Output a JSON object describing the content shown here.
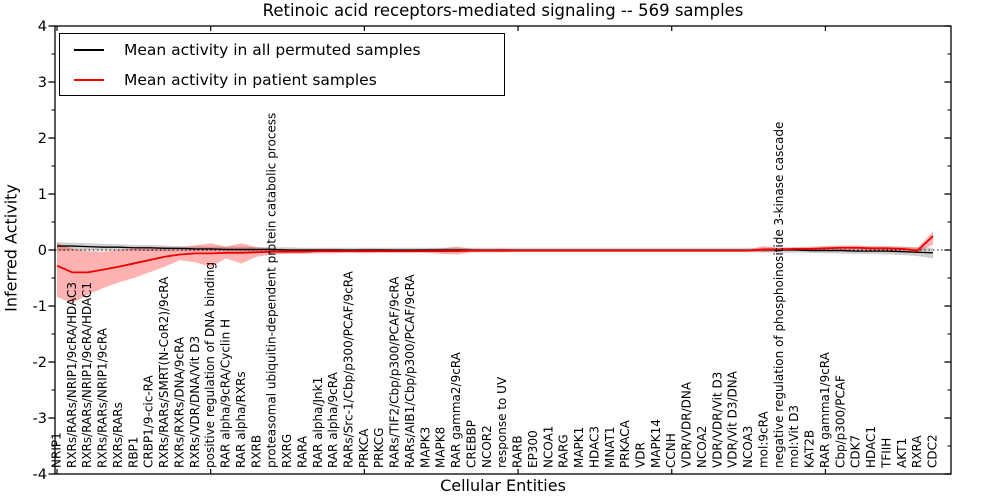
{
  "figure": {
    "title": "Retinoic acid receptors-mediated signaling -- 569 samples",
    "xlabel": "Cellular Entities",
    "ylabel": "Inferred Activity",
    "legend_items": [
      {
        "label": "Mean activity in all permuted samples",
        "color": "#000000"
      },
      {
        "label": "Mean activity in patient samples",
        "color": "#f00000"
      }
    ]
  },
  "chart_data": {
    "type": "line",
    "title": "Retinoic acid receptors-mediated signaling -- 569 samples",
    "xlabel": "Cellular Entities",
    "ylabel": "Inferred Activity",
    "ylim": [
      -4,
      4
    ],
    "yticks": [
      4,
      3,
      2,
      1,
      0,
      -1,
      -2,
      -3,
      -4
    ],
    "zero_line": true,
    "grid": false,
    "legend_position": "upper left",
    "categories": [
      "NRIP1",
      "RXRs/RARs/NRIP1/9cRA/HDAC3",
      "RXRs/RARs/NRIP1/9cRA/HDAC1",
      "RXRs/RARs/NRIP1/9cRA",
      "RXRs/RARs",
      "RBP1",
      "CRBP1/9-cic-RA",
      "RXRs/RARs/SMRT(N-CoR2)/9cRA",
      "RXRs/RXRs/DNA/9cRA",
      "RXRs/VDR/DNA/Vit D3",
      "positive regulation of DNA binding",
      "RAR alpha/9cRA/Cyclin H",
      "RAR alpha/RXRs",
      "RXRB",
      "proteasomal ubiquitin-dependent protein catabolic process",
      "RXRG",
      "RARA",
      "RAR alpha/Jnk1",
      "RAR alpha/9cRA",
      "RARs/Src-1/Cbp/p300/PCAF/9cRA",
      "PRKCA",
      "PRKCG",
      "RARs/TIF2/Cbp/p300/PCAF/9cRA",
      "RARs/AIB1/Cbp/p300/PCAF/9cRA",
      "MAPK3",
      "MAPK8",
      "RAR gamma2/9cRA",
      "CREBBP",
      "NCOR2",
      "response to UV",
      "RARB",
      "EP300",
      "NCOA1",
      "RARG",
      "MAPK1",
      "HDAC3",
      "MNAT1",
      "PRKACA",
      "VDR",
      "MAPK14",
      "CCNH",
      "VDR/VDR/DNA",
      "NCOA2",
      "VDR/VDR/Vit D3",
      "VDR/Vit D3/DNA",
      "NCOA3",
      "mol:9cRA",
      "negative regulation of phosphoinositide 3-kinase cascade",
      "mol:Vit D3",
      "KAT2B",
      "RAR gamma1/9cRA",
      "Cbp/p300/PCAF",
      "CDK7",
      "HDAC1",
      "TFIIH",
      "AKT1",
      "RXRA",
      "CDC2"
    ],
    "series": [
      {
        "name": "Mean activity in all permuted samples",
        "color": "#000000",
        "width": 1.3,
        "values": [
          0.07,
          0.07,
          0.06,
          0.05,
          0.05,
          0.04,
          0.04,
          0.03,
          0.03,
          0.02,
          0.02,
          0.01,
          0.01,
          0.01,
          0.01,
          0.0,
          0.0,
          0.0,
          0.0,
          0.0,
          0.0,
          0.0,
          0.0,
          0.0,
          0.0,
          0.0,
          0.0,
          0.0,
          0.0,
          0.0,
          0.0,
          0.0,
          0.0,
          0.0,
          0.0,
          0.0,
          0.0,
          0.0,
          0.0,
          0.0,
          0.0,
          0.0,
          0.0,
          0.0,
          0.0,
          0.0,
          0.0,
          0.0,
          0.0,
          -0.01,
          -0.01,
          -0.01,
          -0.02,
          -0.02,
          -0.02,
          -0.03,
          -0.04,
          -0.05
        ]
      },
      {
        "name": "Mean activity in patient samples",
        "color": "#f00000",
        "width": 1.8,
        "values": [
          -0.28,
          -0.4,
          -0.4,
          -0.35,
          -0.3,
          -0.24,
          -0.18,
          -0.12,
          -0.08,
          -0.06,
          -0.06,
          -0.05,
          -0.05,
          -0.04,
          -0.03,
          -0.03,
          -0.03,
          -0.02,
          -0.02,
          -0.02,
          -0.02,
          -0.02,
          -0.02,
          -0.02,
          -0.02,
          -0.02,
          -0.02,
          -0.01,
          -0.01,
          -0.01,
          -0.01,
          -0.01,
          -0.01,
          -0.01,
          -0.01,
          -0.01,
          -0.01,
          -0.01,
          -0.01,
          -0.01,
          -0.01,
          -0.01,
          -0.01,
          -0.01,
          -0.01,
          -0.01,
          0.01,
          0.01,
          0.02,
          0.02,
          0.03,
          0.04,
          0.04,
          0.03,
          0.03,
          0.02,
          -0.01,
          0.25
        ]
      }
    ],
    "bands": [
      {
        "name": "permuted samples range",
        "color": "rgba(130,130,130,0.38)",
        "upper": [
          0.14,
          0.13,
          0.12,
          0.11,
          0.1,
          0.09,
          0.09,
          0.08,
          0.07,
          0.07,
          0.06,
          0.06,
          0.06,
          0.05,
          0.05,
          0.05,
          0.04,
          0.04,
          0.04,
          0.04,
          0.04,
          0.04,
          0.04,
          0.04,
          0.04,
          0.04,
          0.04,
          0.04,
          0.04,
          0.04,
          0.04,
          0.04,
          0.04,
          0.04,
          0.04,
          0.04,
          0.04,
          0.04,
          0.04,
          0.04,
          0.04,
          0.04,
          0.04,
          0.04,
          0.04,
          0.04,
          0.04,
          0.04,
          0.04,
          0.04,
          0.04,
          0.04,
          0.04,
          0.04,
          0.05,
          0.05,
          0.05,
          0.04
        ],
        "lower": [
          -0.02,
          -0.01,
          -0.01,
          -0.01,
          -0.01,
          -0.01,
          -0.02,
          -0.02,
          -0.02,
          -0.02,
          -0.02,
          -0.03,
          -0.03,
          -0.03,
          -0.03,
          -0.04,
          -0.04,
          -0.04,
          -0.04,
          -0.04,
          -0.04,
          -0.04,
          -0.04,
          -0.04,
          -0.04,
          -0.04,
          -0.04,
          -0.04,
          -0.04,
          -0.04,
          -0.04,
          -0.04,
          -0.04,
          -0.04,
          -0.04,
          -0.04,
          -0.04,
          -0.04,
          -0.04,
          -0.04,
          -0.04,
          -0.04,
          -0.04,
          -0.04,
          -0.04,
          -0.04,
          -0.04,
          -0.05,
          -0.05,
          -0.05,
          -0.06,
          -0.06,
          -0.07,
          -0.07,
          -0.08,
          -0.09,
          -0.11,
          -0.15
        ]
      },
      {
        "name": "patient samples range",
        "color": "rgba(255,0,0,0.30)",
        "upper": [
          0.13,
          0.02,
          -0.02,
          -0.03,
          0.0,
          0.03,
          0.05,
          0.05,
          0.04,
          0.08,
          0.12,
          0.06,
          0.12,
          0.05,
          0.03,
          0.02,
          0.02,
          0.02,
          0.02,
          0.01,
          0.02,
          0.02,
          0.01,
          0.01,
          0.02,
          0.03,
          0.06,
          0.02,
          0.01,
          0.02,
          0.01,
          0.01,
          0.01,
          0.01,
          0.01,
          0.01,
          0.01,
          0.01,
          0.01,
          0.01,
          0.01,
          0.01,
          0.01,
          0.01,
          0.01,
          0.01,
          0.07,
          0.04,
          0.05,
          0.06,
          0.07,
          0.08,
          0.08,
          0.07,
          0.07,
          0.06,
          0.04,
          0.33
        ],
        "lower": [
          -0.84,
          -0.95,
          -0.8,
          -0.68,
          -0.58,
          -0.5,
          -0.4,
          -0.3,
          -0.18,
          -0.22,
          -0.3,
          -0.15,
          -0.24,
          -0.12,
          -0.08,
          -0.07,
          -0.07,
          -0.06,
          -0.06,
          -0.05,
          -0.06,
          -0.05,
          -0.05,
          -0.05,
          -0.05,
          -0.07,
          -0.08,
          -0.04,
          -0.04,
          -0.04,
          -0.03,
          -0.03,
          -0.03,
          -0.03,
          -0.03,
          -0.03,
          -0.03,
          -0.03,
          -0.03,
          -0.03,
          -0.03,
          -0.03,
          -0.03,
          -0.03,
          -0.03,
          -0.03,
          -0.04,
          -0.02,
          -0.01,
          -0.01,
          0.0,
          0.0,
          0.01,
          0.0,
          -0.01,
          -0.02,
          -0.05,
          0.1
        ]
      }
    ]
  }
}
